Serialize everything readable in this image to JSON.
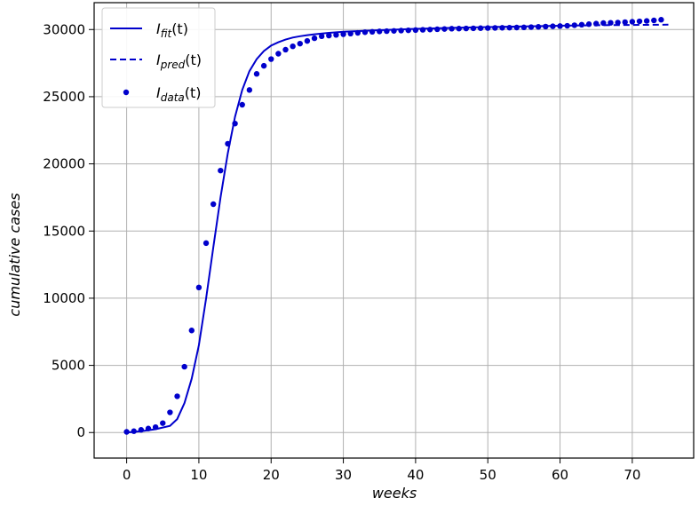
{
  "chart_data": {
    "type": "line",
    "xlabel": "weeks",
    "ylabel": "cumulative cases",
    "xlim": [
      -4.5,
      78.5
    ],
    "ylim": [
      -1900,
      32000
    ],
    "xticks": [
      0,
      10,
      20,
      30,
      40,
      50,
      60,
      70
    ],
    "yticks": [
      0,
      5000,
      10000,
      15000,
      20000,
      25000,
      30000
    ],
    "grid": true,
    "legend_position": "top-left",
    "color": "#0000cc",
    "legend": [
      {
        "key": "fit",
        "base": "I",
        "sub": "fit",
        "suffix": "(t)",
        "style": "solid"
      },
      {
        "key": "pred",
        "base": "I",
        "sub": "pred",
        "suffix": "(t)",
        "style": "dashed"
      },
      {
        "key": "data",
        "base": "I",
        "sub": "data",
        "suffix": "(t)",
        "style": "markers"
      }
    ],
    "series": [
      {
        "key": "fit",
        "style": "solid",
        "x": [
          0,
          2,
          4,
          6,
          7,
          8,
          9,
          10,
          11,
          12,
          13,
          14,
          15,
          16,
          17,
          18,
          19,
          20,
          21,
          22,
          23,
          24,
          25,
          26,
          28,
          30,
          35,
          40,
          45,
          50,
          55,
          60,
          62
        ],
        "y": [
          0,
          100,
          250,
          500,
          1000,
          2200,
          4000,
          6500,
          10000,
          13800,
          17500,
          20800,
          23500,
          25500,
          26900,
          27800,
          28400,
          28800,
          29050,
          29250,
          29400,
          29500,
          29580,
          29650,
          29750,
          29830,
          29950,
          30050,
          30120,
          30180,
          30230,
          30280,
          30300
        ]
      },
      {
        "key": "pred",
        "style": "dashed",
        "x": [
          62,
          65,
          70,
          75
        ],
        "y": [
          30300,
          30320,
          30340,
          30360
        ]
      },
      {
        "key": "data",
        "style": "markers",
        "x": [
          0,
          1,
          2,
          3,
          4,
          5,
          6,
          7,
          8,
          9,
          10,
          11,
          12,
          13,
          14,
          15,
          16,
          17,
          18,
          19,
          20,
          21,
          22,
          23,
          24,
          25,
          26,
          27,
          28,
          29,
          30,
          31,
          32,
          33,
          34,
          35,
          36,
          37,
          38,
          39,
          40,
          41,
          42,
          43,
          44,
          45,
          46,
          47,
          48,
          49,
          50,
          51,
          52,
          53,
          54,
          55,
          56,
          57,
          58,
          59,
          60,
          61,
          62,
          63,
          64,
          65,
          66,
          67,
          68,
          69,
          70,
          71,
          72,
          73,
          74
        ],
        "y": [
          50,
          100,
          200,
          300,
          400,
          700,
          1500,
          2700,
          4900,
          7600,
          10800,
          14100,
          17000,
          19500,
          21500,
          23000,
          24400,
          25500,
          26700,
          27300,
          27800,
          28200,
          28500,
          28750,
          28950,
          29150,
          29350,
          29500,
          29550,
          29600,
          29650,
          29700,
          29750,
          29800,
          29830,
          29860,
          29880,
          29900,
          29920,
          29940,
          29960,
          29980,
          30000,
          30020,
          30040,
          30060,
          30070,
          30080,
          30090,
          30100,
          30110,
          30120,
          30130,
          30140,
          30150,
          30160,
          30180,
          30200,
          30220,
          30240,
          30260,
          30280,
          30320,
          30360,
          30400,
          30440,
          30480,
          30500,
          30520,
          30550,
          30580,
          30610,
          30640,
          30680,
          30730
        ]
      }
    ]
  }
}
